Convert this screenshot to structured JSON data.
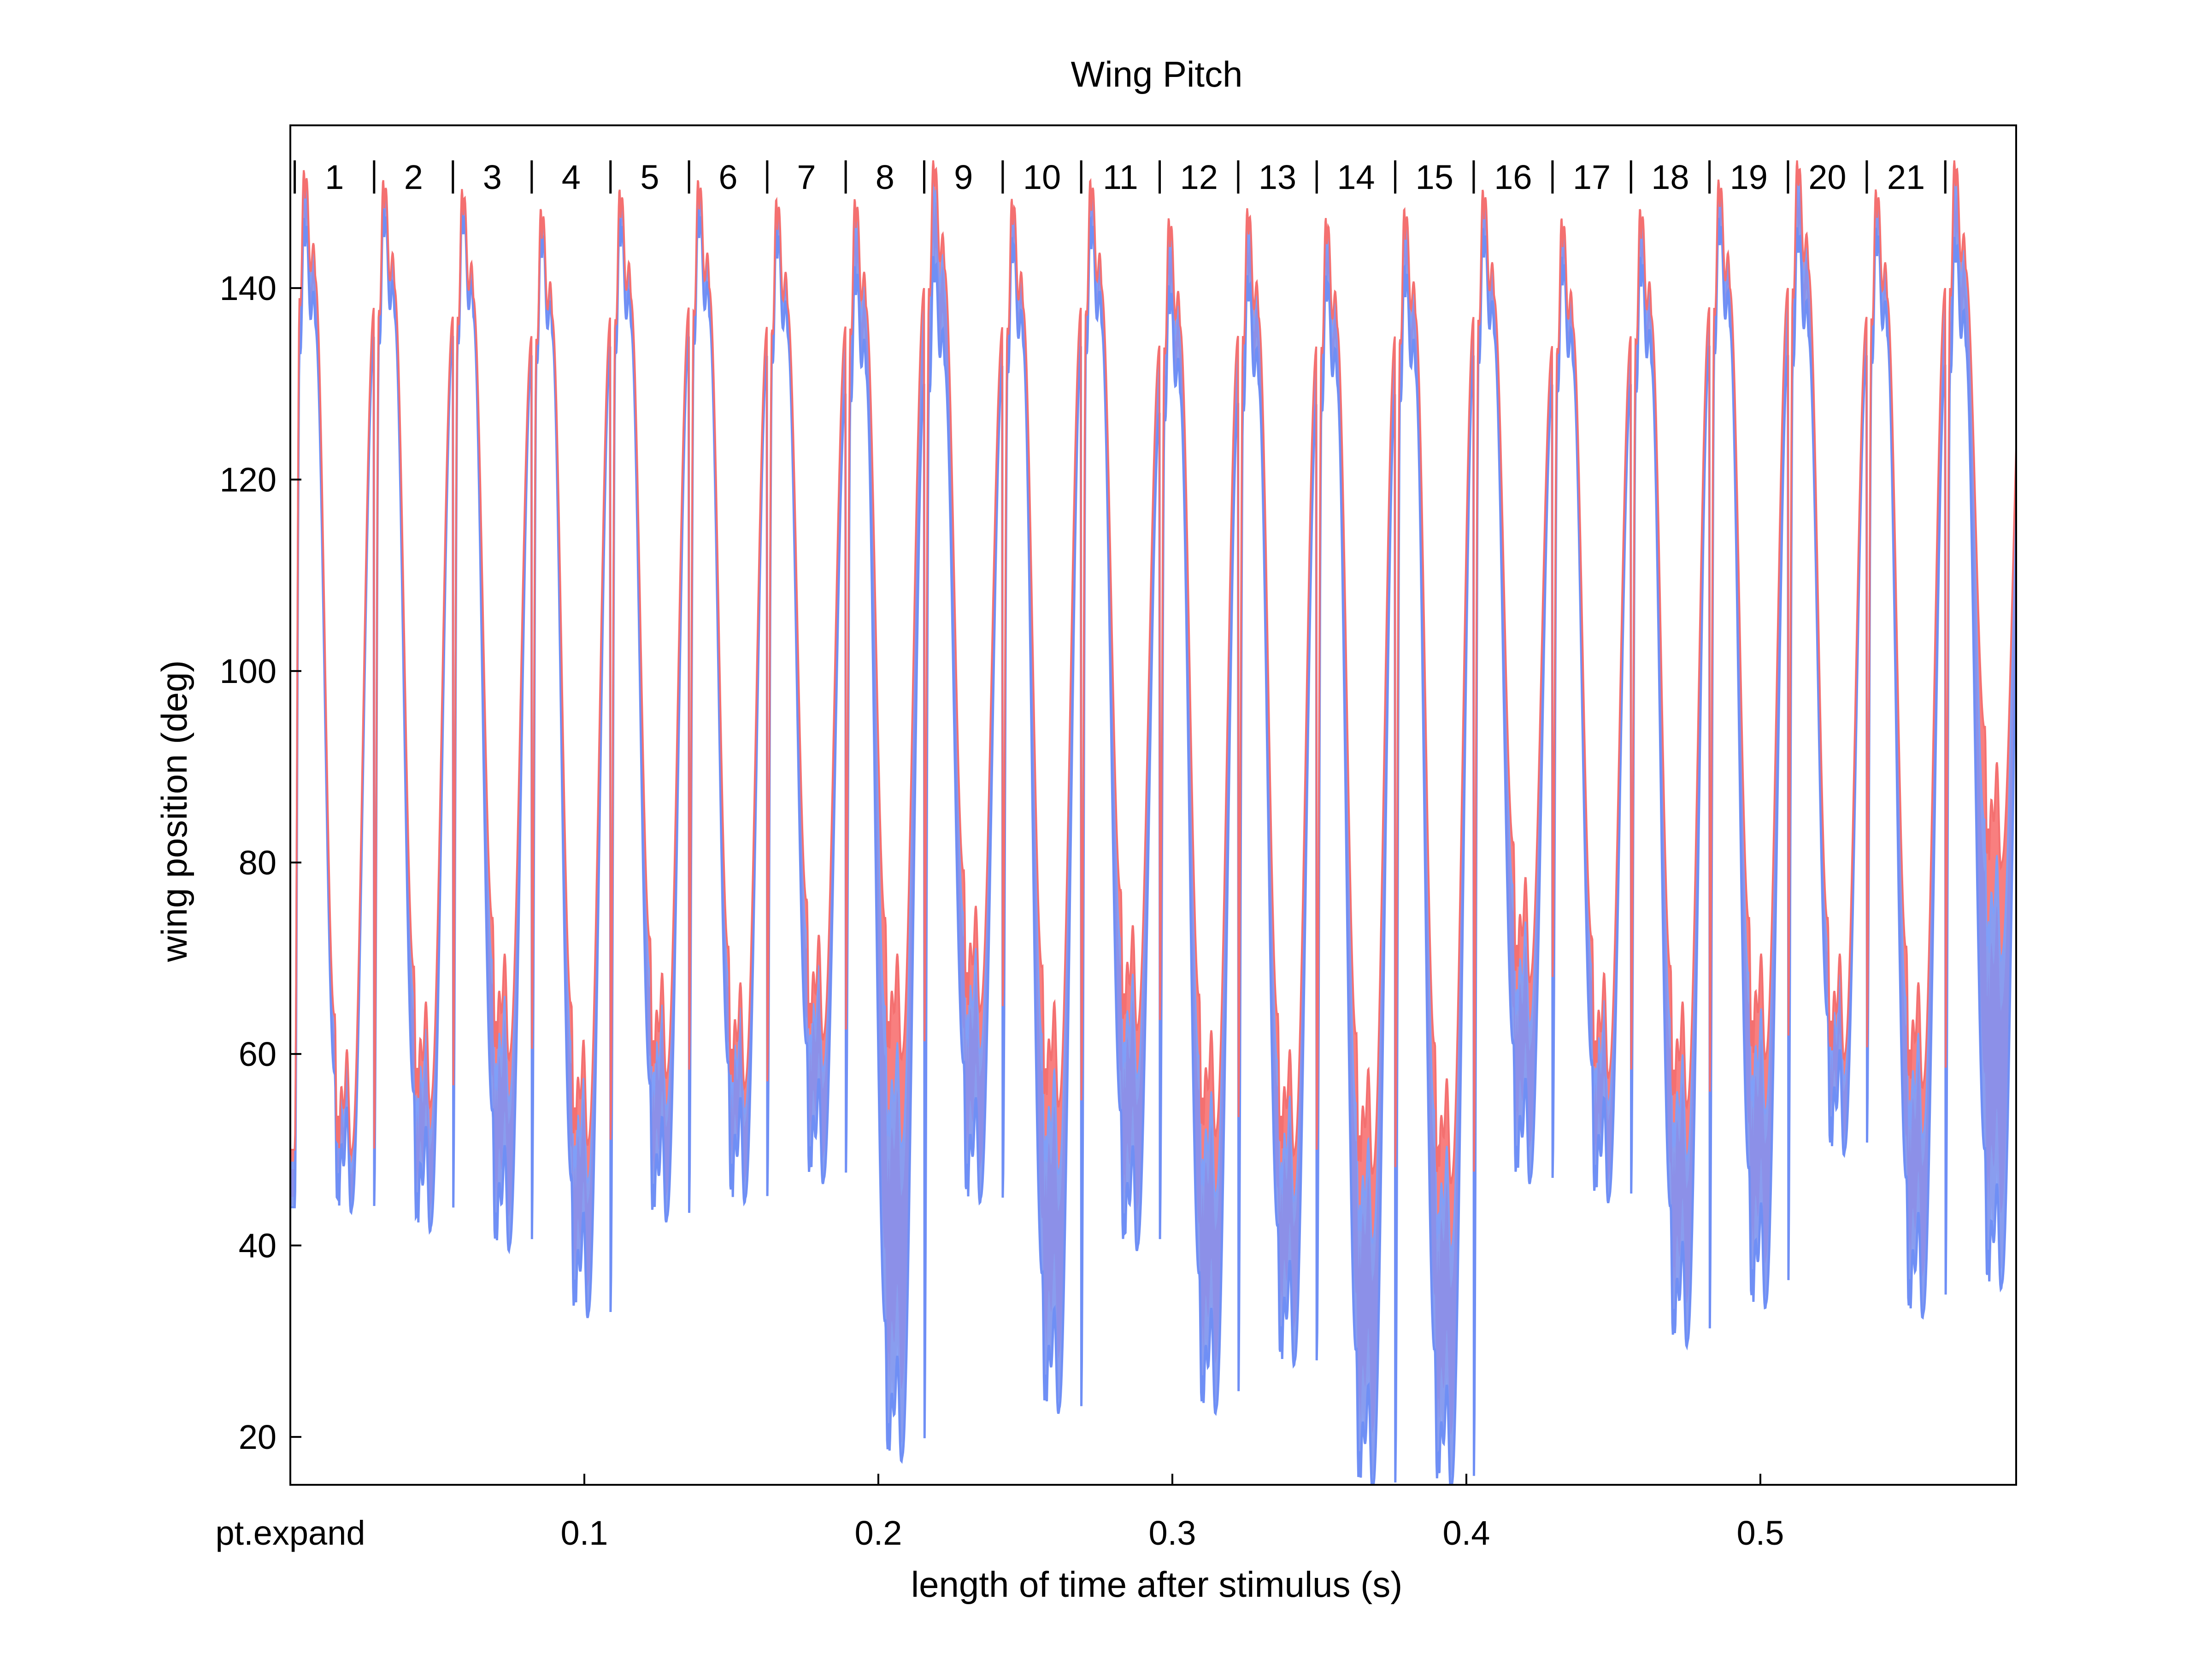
{
  "chart_data": {
    "type": "area",
    "title": "Wing Pitch",
    "xlabel": "length of time after stimulus (s)",
    "ylabel": "wing position (deg)",
    "xlim": [
      0,
      0.587
    ],
    "ylim": [
      15,
      157
    ],
    "x_ticks": [
      {
        "value": 0,
        "label": "pt.expand"
      },
      {
        "value": 0.1,
        "label": "0.1"
      },
      {
        "value": 0.2,
        "label": "0.2"
      },
      {
        "value": 0.3,
        "label": "0.3"
      },
      {
        "value": 0.4,
        "label": "0.4"
      },
      {
        "value": 0.5,
        "label": "0.5"
      }
    ],
    "y_ticks": [
      20,
      40,
      60,
      80,
      100,
      120,
      140
    ],
    "grid": false,
    "legend": "none",
    "stroke_labels": [
      "1",
      "2",
      "3",
      "4",
      "5",
      "6",
      "7",
      "8",
      "9",
      "10",
      "11",
      "12",
      "13",
      "14",
      "15",
      "16",
      "17",
      "18",
      "19",
      "20",
      "21"
    ],
    "stroke_boundaries": [
      0.0015,
      0.0285,
      0.0553,
      0.0821,
      0.1089,
      0.1356,
      0.1622,
      0.1889,
      0.2156,
      0.2423,
      0.269,
      0.2957,
      0.3224,
      0.3491,
      0.3758,
      0.4025,
      0.4293,
      0.456,
      0.4827,
      0.5094,
      0.5362,
      0.5629
    ],
    "strokes": [
      {
        "t0": 0.0015,
        "peak_min": 144,
        "peak_max": 149,
        "trough_min": 44,
        "trough_max": 50
      },
      {
        "t0": 0.0285,
        "peak_min": 145,
        "peak_max": 148,
        "trough_min": 42,
        "trough_max": 55
      },
      {
        "t0": 0.0553,
        "peak_min": 145,
        "peak_max": 147,
        "trough_min": 40,
        "trough_max": 60
      },
      {
        "t0": 0.0821,
        "peak_min": 143,
        "peak_max": 145,
        "trough_min": 33,
        "trough_max": 51
      },
      {
        "t0": 0.1089,
        "peak_min": 144,
        "peak_max": 147,
        "trough_min": 43,
        "trough_max": 58
      },
      {
        "t0": 0.1356,
        "peak_min": 145,
        "peak_max": 148,
        "trough_min": 45,
        "trough_max": 57
      },
      {
        "t0": 0.1622,
        "peak_min": 143,
        "peak_max": 146,
        "trough_min": 47,
        "trough_max": 62
      },
      {
        "t0": 0.1889,
        "peak_min": 139,
        "peak_max": 146,
        "trough_min": 18,
        "trough_max": 60
      },
      {
        "t0": 0.2156,
        "peak_min": 140,
        "peak_max": 150,
        "trough_min": 45,
        "trough_max": 65
      },
      {
        "t0": 0.2423,
        "peak_min": 142,
        "peak_max": 146,
        "trough_min": 23,
        "trough_max": 55
      },
      {
        "t0": 0.269,
        "peak_min": 144,
        "peak_max": 148,
        "trough_min": 40,
        "trough_max": 63
      },
      {
        "t0": 0.2957,
        "peak_min": 137,
        "peak_max": 144,
        "trough_min": 23,
        "trough_max": 52
      },
      {
        "t0": 0.3224,
        "peak_min": 138,
        "peak_max": 145,
        "trough_min": 28,
        "trough_max": 50
      },
      {
        "t0": 0.3491,
        "peak_min": 138,
        "peak_max": 144,
        "trough_min": 15,
        "trough_max": 48
      },
      {
        "t0": 0.3758,
        "peak_min": 139,
        "peak_max": 145,
        "trough_min": 15,
        "trough_max": 47
      },
      {
        "t0": 0.4025,
        "peak_min": 143,
        "peak_max": 147,
        "trough_min": 47,
        "trough_max": 68
      },
      {
        "t0": 0.4293,
        "peak_min": 140,
        "peak_max": 144,
        "trough_min": 45,
        "trough_max": 58
      },
      {
        "t0": 0.456,
        "peak_min": 140,
        "peak_max": 145,
        "trough_min": 30,
        "trough_max": 55
      },
      {
        "t0": 0.4827,
        "peak_min": 144,
        "peak_max": 148,
        "trough_min": 34,
        "trough_max": 60
      },
      {
        "t0": 0.5094,
        "peak_min": 143,
        "peak_max": 150,
        "trough_min": 50,
        "trough_max": 60
      },
      {
        "t0": 0.5362,
        "peak_min": 143,
        "peak_max": 147,
        "trough_min": 33,
        "trough_max": 57
      },
      {
        "t0": 0.5629,
        "peak_min": 142,
        "peak_max": 150,
        "trough_min": 36,
        "trough_max": 80
      }
    ],
    "series": [
      {
        "color": "#f87f7f"
      },
      {
        "color": "#7f9ff8"
      }
    ],
    "overlap_color": "#8d8ee6"
  }
}
